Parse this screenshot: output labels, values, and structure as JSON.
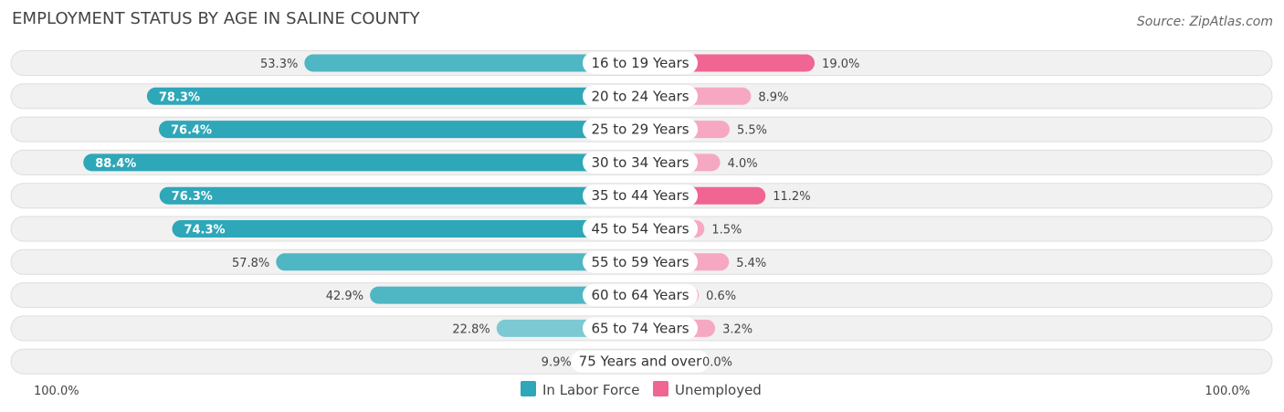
{
  "header": {
    "title": "EMPLOYMENT STATUS BY AGE IN SALINE COUNTY",
    "source": "Source: ZipAtlas.com"
  },
  "colors": {
    "labor_strong": "#2ea7b8",
    "labor_light": "#7cc9d3",
    "unemp_strong": "#f06592",
    "unemp_light": "#f6a8c2"
  },
  "chart_data": {
    "type": "bar",
    "orientation": "horizontal-diverging",
    "title": "EMPLOYMENT STATUS BY AGE IN SALINE COUNTY",
    "categories": [
      "16 to 19 Years",
      "20 to 24 Years",
      "25 to 29 Years",
      "30 to 34 Years",
      "35 to 44 Years",
      "45 to 54 Years",
      "55 to 59 Years",
      "60 to 64 Years",
      "65 to 74 Years",
      "75 Years and over"
    ],
    "series": [
      {
        "name": "In Labor Force",
        "values": [
          53.3,
          78.3,
          76.4,
          88.4,
          76.3,
          74.3,
          57.8,
          42.9,
          22.8,
          9.9
        ]
      },
      {
        "name": "Unemployed",
        "values": [
          19.0,
          8.9,
          5.5,
          4.0,
          11.2,
          1.5,
          5.4,
          0.6,
          3.2,
          0.0
        ]
      }
    ],
    "value_labels": {
      "In Labor Force": [
        "53.3%",
        "78.3%",
        "76.4%",
        "88.4%",
        "76.3%",
        "74.3%",
        "57.8%",
        "42.9%",
        "22.8%",
        "9.9%"
      ],
      "Unemployed": [
        "19.0%",
        "8.9%",
        "5.5%",
        "4.0%",
        "11.2%",
        "1.5%",
        "5.4%",
        "0.6%",
        "3.2%",
        "0.0%"
      ]
    },
    "axis": {
      "left_label": "100.0%",
      "right_label": "100.0%",
      "xlim": [
        0,
        100
      ]
    },
    "legend": {
      "position": "bottom-center",
      "entries": [
        "In Labor Force",
        "Unemployed"
      ]
    }
  }
}
